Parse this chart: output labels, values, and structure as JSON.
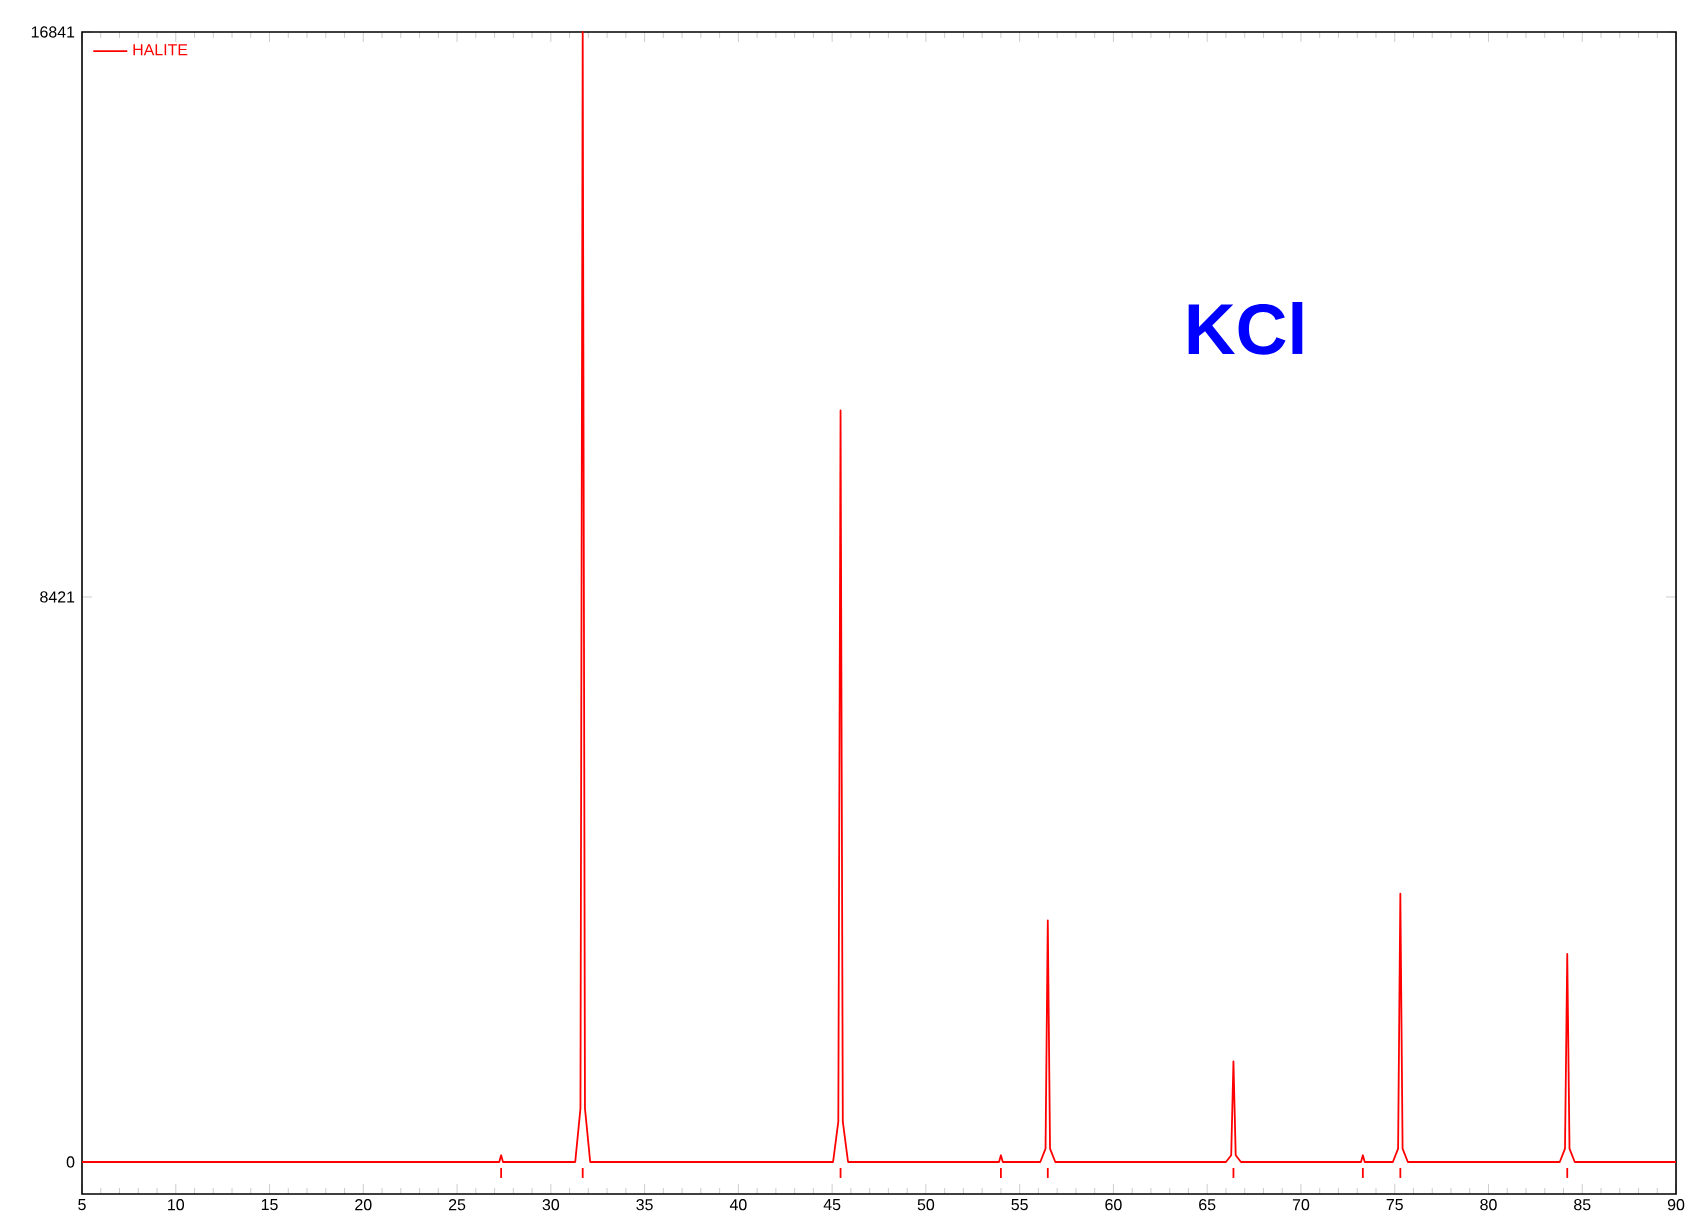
{
  "chart_data": {
    "type": "line",
    "legend": "top left",
    "xlim": [
      5,
      90
    ],
    "ylim": [
      -477,
      16841
    ],
    "xticks": [
      5,
      10,
      15,
      20,
      25,
      30,
      35,
      40,
      45,
      50,
      55,
      60,
      65,
      70,
      75,
      80,
      85,
      90
    ],
    "yticks": [
      0,
      8421,
      16841
    ],
    "annotations": [
      "KCl"
    ],
    "marker": "none",
    "line_style": "solid",
    "series": [
      {
        "name": "HALITE",
        "color": "#ff0000",
        "x": [
          5,
          27.25,
          27.35,
          27.45,
          31.3,
          31.58,
          31.7,
          31.82,
          32.1,
          45.05,
          45.33,
          45.45,
          45.57,
          45.85,
          53.9,
          54.0,
          54.1,
          56.1,
          56.38,
          56.5,
          56.62,
          56.9,
          66.0,
          66.28,
          66.4,
          66.52,
          66.8,
          73.2,
          73.3,
          73.4,
          74.9,
          75.18,
          75.3,
          75.42,
          75.7,
          83.8,
          84.08,
          84.2,
          84.32,
          84.6,
          90
        ],
        "values": [
          0,
          0,
          100,
          0,
          0,
          800,
          16841,
          800,
          0,
          0,
          600,
          11200,
          600,
          0,
          0,
          100,
          0,
          0,
          200,
          3600,
          200,
          0,
          0,
          100,
          1500,
          100,
          0,
          0,
          100,
          0,
          0,
          200,
          4000,
          200,
          0,
          0,
          200,
          3100,
          200,
          0,
          0
        ]
      }
    ]
  }
}
